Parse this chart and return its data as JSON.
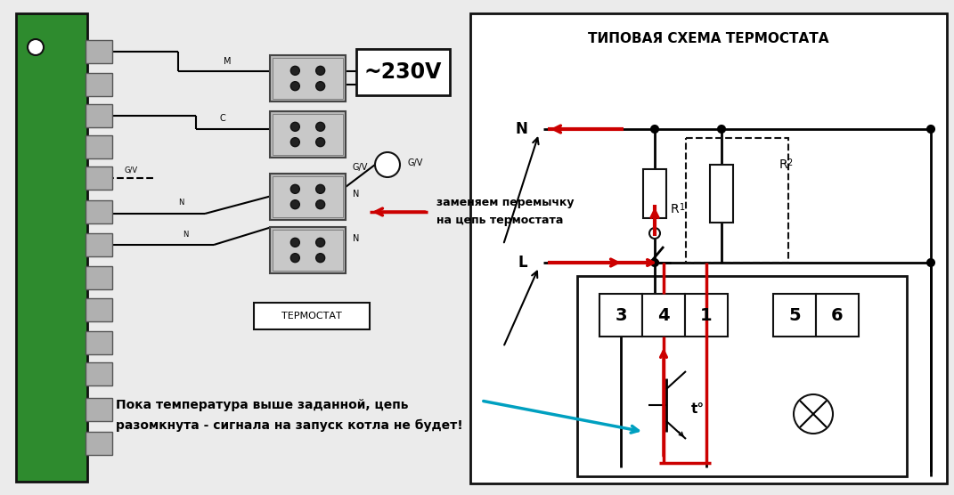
{
  "bg_color": "#ebebeb",
  "white": "#ffffff",
  "black": "#000000",
  "red": "#cc0000",
  "green": "#2d8a2d",
  "gray": "#a0a0a0",
  "light_gray": "#c8c8c8",
  "dark_gray": "#505050",
  "cyan": "#00a0c0",
  "title_text": "ТИПОВАЯ СХЕМА ТЕРМОСТАТА",
  "thermostat_label": "ТЕРМОСТАТ",
  "voltage_label": "~230V",
  "N_label": "N",
  "L_label": "L",
  "R1_label": "R",
  "R1_sub": "1",
  "R2_label": "R",
  "R2_sub": "2",
  "note_line1": "Пока температура выше заданной, цепь",
  "note_line2": "разомкнута - сигнала на запуск котла не будет!",
  "replace_line1": "заменяем перемычку",
  "replace_line2": "на цепь термостата",
  "temp_label": "t°",
  "M_label": "M",
  "C_label": "C",
  "GV_label": "G/V",
  "N2_label": "N",
  "N3_label": "N"
}
